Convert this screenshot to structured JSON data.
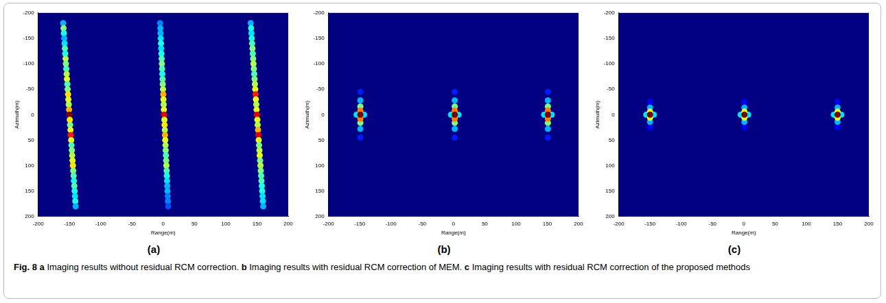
{
  "chart_data": [
    {
      "type": "scatter",
      "panel": "(a)",
      "xlabel": "Range(m)",
      "ylabel": "Azimuth(m)",
      "xlim": [
        -200,
        200
      ],
      "xticks": [
        -200,
        -150,
        -100,
        -50,
        0,
        50,
        100,
        150,
        200
      ],
      "ylim": [
        200,
        -200
      ],
      "yticks": [
        -200,
        -150,
        -100,
        -50,
        0,
        50,
        100,
        150,
        200
      ],
      "grid": false,
      "series": [
        {
          "x": [
            -160,
            -159.4,
            -158.9,
            -158.3,
            -157.8,
            -157.2,
            -156.7,
            -156.1,
            -155.6,
            -155,
            -154.4,
            -153.9,
            -153.3,
            -152.8,
            -152.2,
            -151.7,
            -151.1,
            -150.6,
            -150,
            -149.4,
            -148.9,
            -148.3,
            -147.8,
            -147.2,
            -146.7,
            -146.1,
            -145.6,
            -145,
            -144.4,
            -143.9,
            -143.3,
            -142.8,
            -142.2,
            -141.7,
            -141.1,
            -140.6,
            -140
          ],
          "y": [
            -180,
            -170,
            -160,
            -150,
            -140,
            -130,
            -120,
            -110,
            -100,
            -90,
            -80,
            -70,
            -60,
            -50,
            -40,
            -30,
            -20,
            -10,
            0,
            10,
            20,
            30,
            40,
            50,
            60,
            70,
            80,
            90,
            100,
            110,
            120,
            130,
            140,
            150,
            160,
            170,
            180
          ],
          "values": [
            0.3,
            0.5,
            0.4,
            0.3,
            0.35,
            0.45,
            0.4,
            0.55,
            0.5,
            0.45,
            0.55,
            0.6,
            0.45,
            0.5,
            0.65,
            0.6,
            0.55,
            0.7,
            1.0,
            0.65,
            0.5,
            0.6,
            0.85,
            0.6,
            0.45,
            0.5,
            0.55,
            0.6,
            0.65,
            0.5,
            0.45,
            0.4,
            0.45,
            0.4,
            0.35,
            0.4,
            0.3
          ]
        },
        {
          "x": [
            -5,
            -4.6,
            -4.3,
            -3.9,
            -3.6,
            -3.2,
            -2.8,
            -2.5,
            -2.1,
            -1.8,
            -1.4,
            -1,
            -0.7,
            -0.3,
            0.1,
            0.4,
            0.8,
            1.1,
            1.5,
            1.9,
            2.2,
            2.6,
            2.9,
            3.3,
            3.7,
            4,
            4.4,
            4.7,
            5.1,
            5.5,
            5.8,
            6.2,
            6.5,
            6.9,
            7.3,
            7.6,
            8
          ],
          "y": [
            -180,
            -170,
            -160,
            -150,
            -140,
            -130,
            -120,
            -110,
            -100,
            -90,
            -80,
            -70,
            -60,
            -50,
            -40,
            -30,
            -20,
            -10,
            0,
            10,
            20,
            30,
            40,
            50,
            60,
            70,
            80,
            90,
            100,
            110,
            120,
            130,
            140,
            150,
            160,
            170,
            180
          ],
          "values": [
            0.25,
            0.3,
            0.3,
            0.35,
            0.4,
            0.35,
            0.4,
            0.45,
            0.5,
            0.45,
            0.4,
            0.45,
            0.5,
            0.55,
            0.7,
            0.6,
            0.55,
            0.6,
            0.9,
            0.6,
            0.65,
            0.55,
            0.7,
            0.6,
            0.55,
            0.5,
            0.45,
            0.5,
            0.55,
            0.45,
            0.4,
            0.35,
            0.3,
            0.3,
            0.25,
            0.25,
            0.2
          ]
        },
        {
          "x": [
            140,
            140.6,
            141.1,
            141.7,
            142.2,
            142.8,
            143.3,
            143.9,
            144.4,
            145,
            145.6,
            146.1,
            146.7,
            147.2,
            147.8,
            148.3,
            148.9,
            149.4,
            150,
            150.6,
            151.1,
            151.7,
            152.2,
            152.8,
            153.3,
            153.9,
            154.4,
            155,
            155.6,
            156.1,
            156.7,
            157.2,
            157.8,
            158.3,
            158.9,
            159.4,
            160
          ],
          "y": [
            -180,
            -170,
            -160,
            -150,
            -140,
            -130,
            -120,
            -110,
            -100,
            -90,
            -80,
            -70,
            -60,
            -50,
            -40,
            -30,
            -20,
            -10,
            0,
            10,
            20,
            30,
            40,
            50,
            60,
            70,
            80,
            90,
            100,
            110,
            120,
            130,
            140,
            150,
            160,
            170,
            180
          ],
          "values": [
            0.3,
            0.4,
            0.35,
            0.4,
            0.45,
            0.5,
            0.45,
            0.5,
            0.55,
            0.5,
            0.45,
            0.5,
            0.55,
            0.6,
            0.85,
            0.6,
            0.55,
            0.6,
            0.9,
            0.6,
            0.55,
            0.7,
            0.9,
            0.6,
            0.5,
            0.55,
            0.6,
            0.5,
            0.55,
            0.5,
            0.45,
            0.45,
            0.4,
            0.4,
            0.35,
            0.35,
            0.3
          ]
        }
      ]
    },
    {
      "type": "scatter",
      "panel": "(b)",
      "xlabel": "Range(m)",
      "ylabel": "Azimuth(m)",
      "xlim": [
        -200,
        200
      ],
      "xticks": [
        -200,
        -150,
        -100,
        -50,
        0,
        50,
        100,
        150,
        200
      ],
      "ylim": [
        200,
        -200
      ],
      "yticks": [
        -200,
        -150,
        -100,
        -50,
        0,
        50,
        100,
        150,
        200
      ],
      "grid": false,
      "series": [
        {
          "x": [
            -149,
            -149,
            -149,
            -149,
            -155,
            -143,
            -149,
            -149,
            -149,
            -149,
            -149
          ],
          "y": [
            -45,
            45,
            -28,
            28,
            0,
            0,
            -16,
            16,
            -8,
            8,
            0
          ],
          "values": [
            0.15,
            0.15,
            0.3,
            0.3,
            0.35,
            0.35,
            0.5,
            0.5,
            0.75,
            0.75,
            1.0
          ]
        },
        {
          "x": [
            2,
            2,
            2,
            2,
            -4,
            8,
            2,
            2,
            2,
            2,
            2
          ],
          "y": [
            -45,
            45,
            -28,
            28,
            0,
            0,
            -16,
            16,
            -8,
            8,
            0
          ],
          "values": [
            0.15,
            0.15,
            0.3,
            0.3,
            0.35,
            0.35,
            0.5,
            0.5,
            0.75,
            0.75,
            1.0
          ]
        },
        {
          "x": [
            151,
            151,
            151,
            151,
            145,
            157,
            151,
            151,
            151,
            151,
            151
          ],
          "y": [
            -45,
            45,
            -28,
            28,
            0,
            0,
            -16,
            16,
            -8,
            8,
            0
          ],
          "values": [
            0.15,
            0.15,
            0.3,
            0.3,
            0.35,
            0.35,
            0.5,
            0.5,
            0.75,
            0.75,
            1.0
          ]
        }
      ]
    },
    {
      "type": "scatter",
      "panel": "(c)",
      "xlabel": "Range(m)",
      "ylabel": "Azimuth(m)",
      "xlim": [
        -200,
        200
      ],
      "xticks": [
        -200,
        -150,
        -100,
        -50,
        0,
        50,
        100,
        150,
        200
      ],
      "ylim": [
        200,
        -200
      ],
      "yticks": [
        -200,
        -150,
        -100,
        -50,
        0,
        50,
        100,
        150,
        200
      ],
      "grid": false,
      "series": [
        {
          "x": [
            -150,
            -150,
            -156,
            -144,
            -150,
            -150,
            -150,
            -150,
            -150
          ],
          "y": [
            -25,
            25,
            0,
            0,
            -14,
            14,
            -6,
            6,
            0
          ],
          "values": [
            0.12,
            0.12,
            0.35,
            0.35,
            0.3,
            0.3,
            0.6,
            0.6,
            1.0
          ]
        },
        {
          "x": [
            1,
            1,
            -5,
            7,
            1,
            1,
            1,
            1,
            1
          ],
          "y": [
            -25,
            25,
            0,
            0,
            -14,
            14,
            -6,
            6,
            0
          ],
          "values": [
            0.12,
            0.12,
            0.35,
            0.35,
            0.3,
            0.3,
            0.6,
            0.6,
            1.0
          ]
        },
        {
          "x": [
            150,
            150,
            144,
            156,
            150,
            150,
            150,
            150,
            150
          ],
          "y": [
            -25,
            25,
            0,
            0,
            -14,
            14,
            -6,
            6,
            0
          ],
          "values": [
            0.12,
            0.12,
            0.35,
            0.35,
            0.3,
            0.3,
            0.6,
            0.6,
            1.0
          ]
        }
      ]
    }
  ],
  "caption": {
    "label": "Fig. 8",
    "parts": [
      {
        "letter": "a",
        "text": "Imaging results without residual RCM correction."
      },
      {
        "letter": "b",
        "text": "Imaging results with residual RCM correction of MEM."
      },
      {
        "letter": "c",
        "text": "Imaging results with residual RCM correction of the proposed methods"
      }
    ]
  }
}
